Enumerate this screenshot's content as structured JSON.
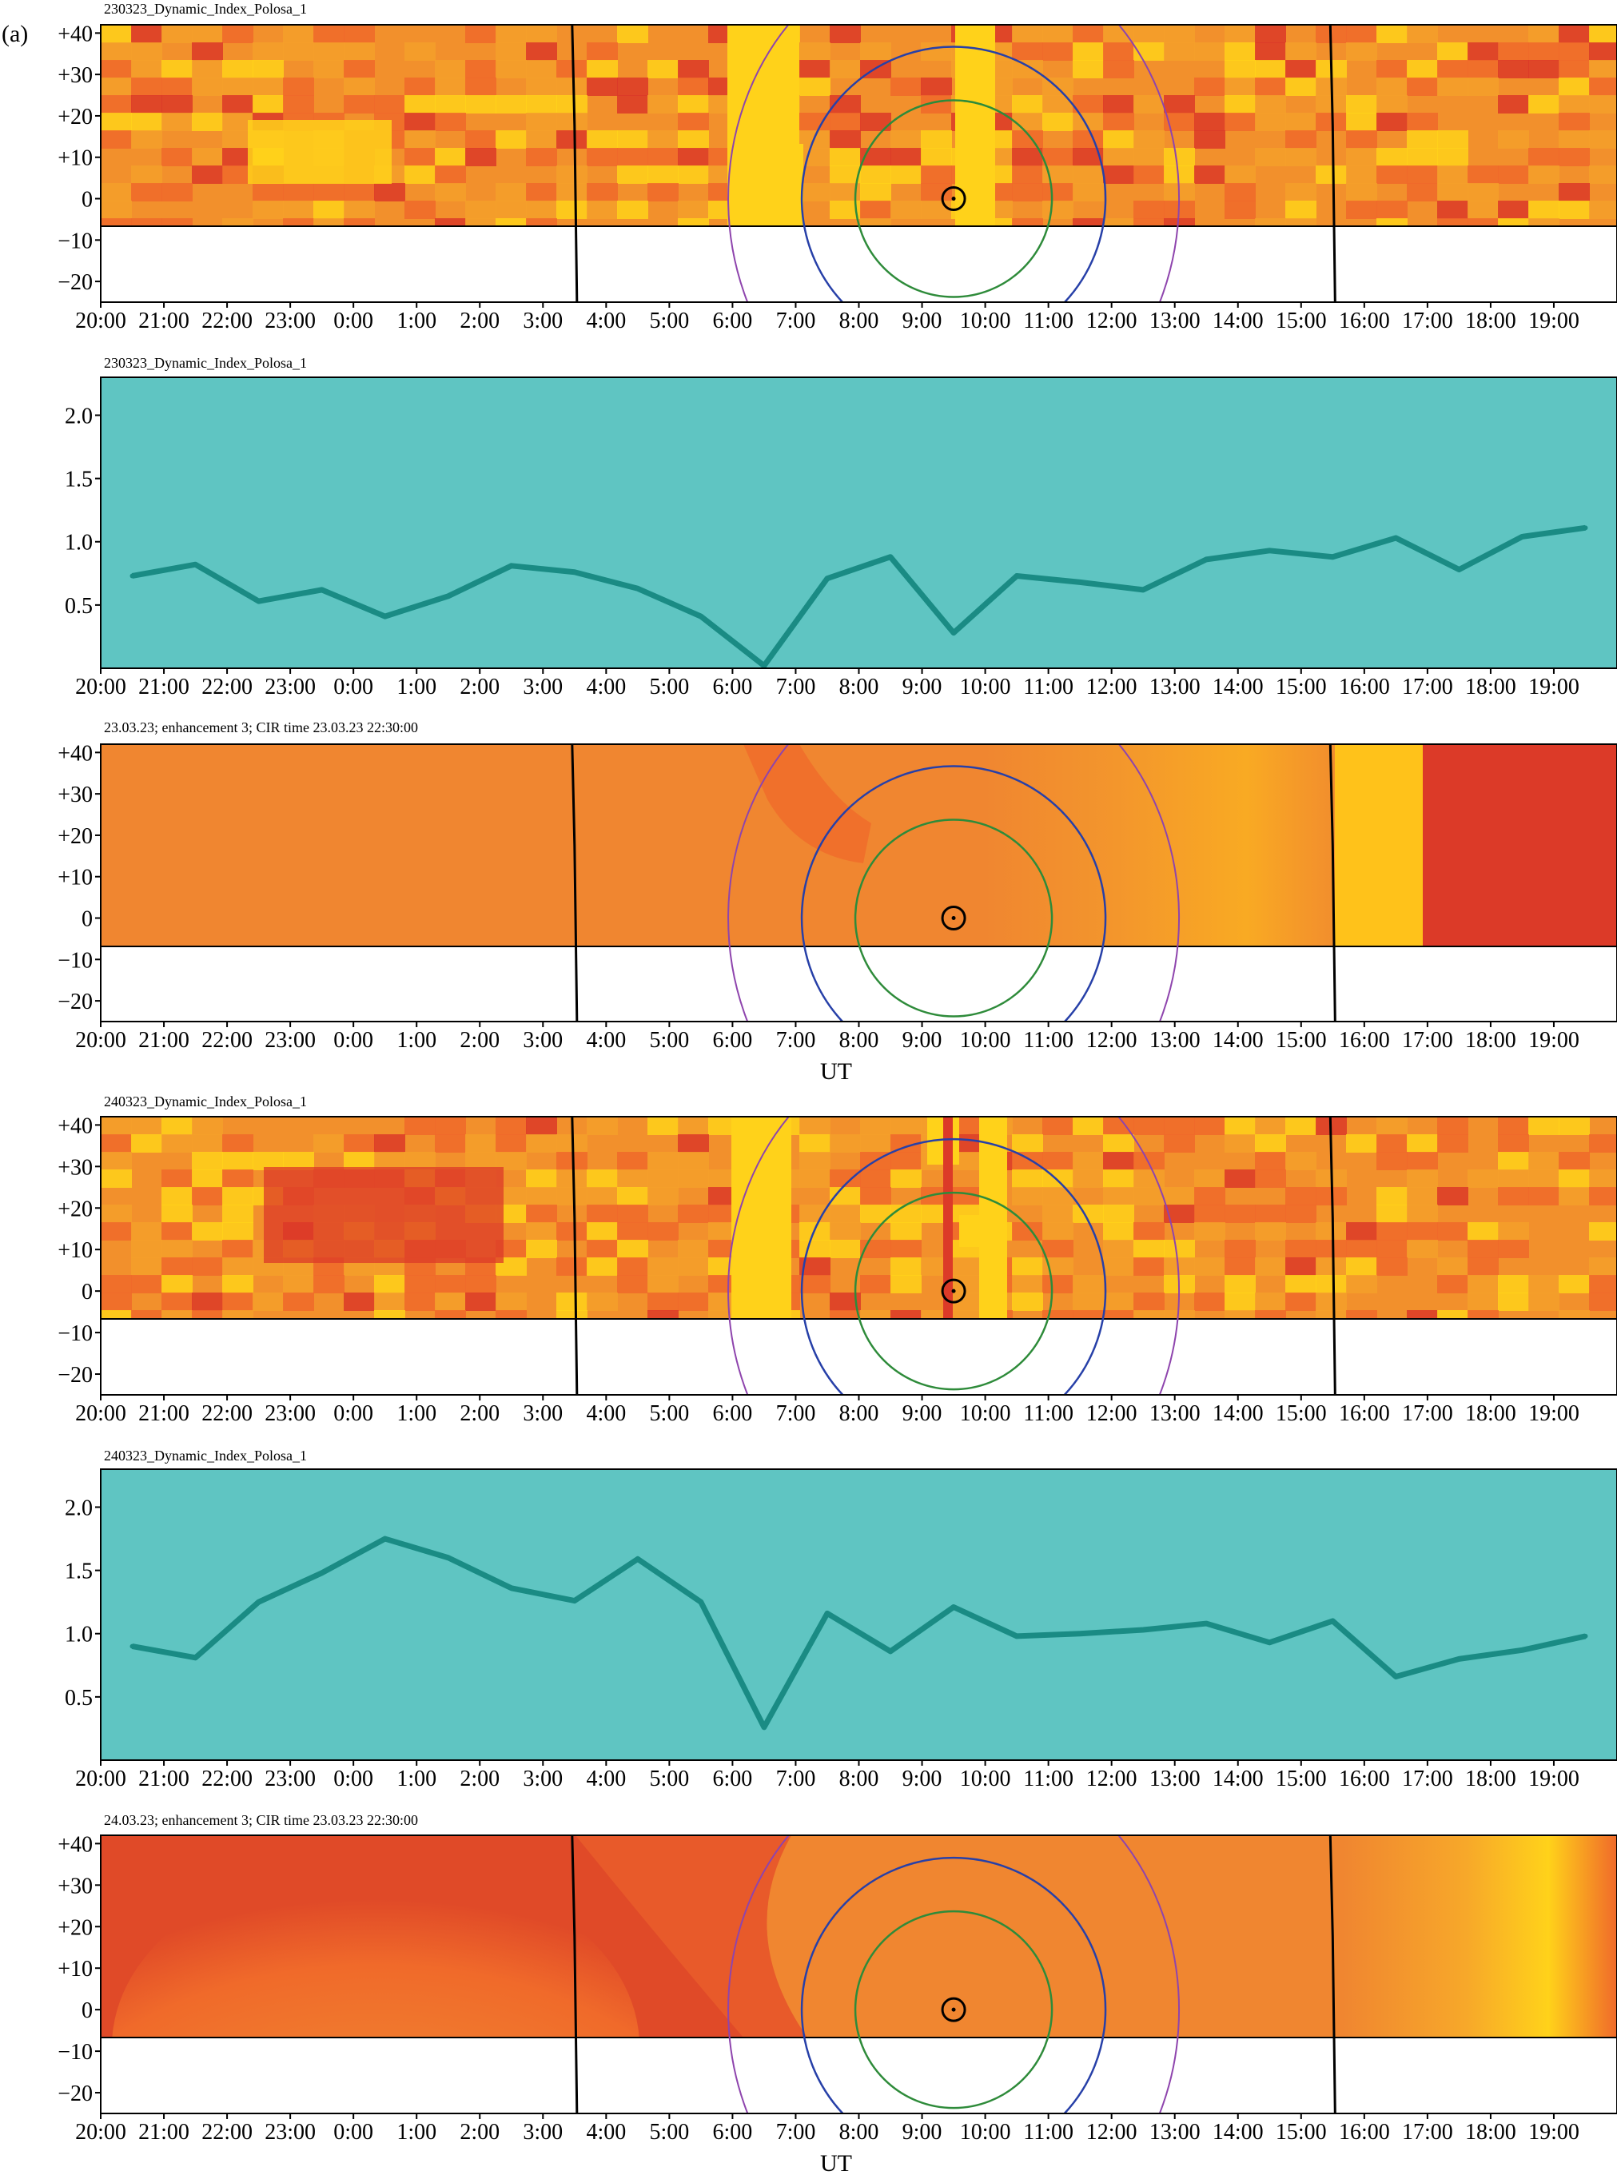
{
  "figure_label": "(a)",
  "colors": {
    "heat_pale": "#ffd21a",
    "heat_mid": "#f5a02a",
    "heat_orange": "#f08630",
    "heat_dark": "#f06a2a",
    "heat_red": "#dc3a28",
    "teal_bg": "#5fc5c2",
    "teal_line": "#1a8b84",
    "outer_arc": "#8e44ad",
    "middle_circle": "#2740a8",
    "inner_circle": "#2e8b3a",
    "marker": "#000000"
  },
  "x_ticks": [
    "20:00",
    "21:00",
    "22:00",
    "23:00",
    "0:00",
    "1:00",
    "2:00",
    "3:00",
    "4:00",
    "5:00",
    "6:00",
    "7:00",
    "8:00",
    "9:00",
    "10:00",
    "11:00",
    "12:00",
    "13:00",
    "14:00",
    "15:00",
    "16:00",
    "17:00",
    "18:00",
    "19:00"
  ],
  "chart_data": [
    {
      "type": "heatmap",
      "title": "230323_Dynamic_Index_Polosa_1",
      "xlabel": "",
      "y_ticks": [
        "+40",
        "+30",
        "+20",
        "+10",
        "0",
        "−10",
        "−20"
      ],
      "ylim": [
        -25,
        42
      ],
      "overlay": {
        "vertical_lines_ut": [
          "3:30",
          "15:30"
        ],
        "marker_ut": "9:30",
        "marker_lat": 0,
        "circles": [
          "inner",
          "middle",
          "outer"
        ]
      }
    },
    {
      "type": "line",
      "title": "230323_Dynamic_Index_Polosa_1",
      "xlabel": "",
      "y_ticks": [
        "2.0",
        "1.5",
        "1.0",
        "0.5"
      ],
      "ylim": [
        0,
        2.3
      ],
      "x": [
        "20:30",
        "21:30",
        "22:30",
        "23:30",
        "0:30",
        "1:30",
        "2:30",
        "3:30",
        "4:30",
        "5:30",
        "6:30",
        "7:30",
        "8:30",
        "9:30",
        "10:30",
        "11:30",
        "12:30",
        "13:30",
        "14:30",
        "15:30",
        "16:30",
        "17:30",
        "18:30",
        "19:30"
      ],
      "values": [
        0.73,
        0.82,
        0.53,
        0.62,
        0.41,
        0.57,
        0.81,
        0.76,
        0.63,
        0.41,
        0.02,
        0.71,
        0.88,
        0.28,
        0.73,
        0.68,
        0.62,
        0.86,
        0.93,
        0.88,
        1.03,
        0.78,
        1.04,
        1.11
      ]
    },
    {
      "type": "heatmap",
      "title": "23.03.23; enhancement 3; CIR time 23.03.23 22:30:00",
      "xlabel": "UT",
      "y_ticks": [
        "+40",
        "+30",
        "+20",
        "+10",
        "0",
        "−10",
        "−20"
      ],
      "ylim": [
        -25,
        42
      ],
      "overlay": {
        "vertical_lines_ut": [
          "3:30",
          "15:30"
        ],
        "marker_ut": "9:30",
        "marker_lat": 0,
        "circles": [
          "inner",
          "middle",
          "outer"
        ]
      }
    },
    {
      "type": "heatmap",
      "title": "240323_Dynamic_Index_Polosa_1",
      "xlabel": "",
      "y_ticks": [
        "+40",
        "+30",
        "+20",
        "+10",
        "0",
        "−10",
        "−20"
      ],
      "ylim": [
        -25,
        42
      ],
      "overlay": {
        "vertical_lines_ut": [
          "3:30",
          "15:30"
        ],
        "marker_ut": "9:30",
        "marker_lat": 0,
        "circles": [
          "inner",
          "middle",
          "outer"
        ]
      }
    },
    {
      "type": "line",
      "title": "240323_Dynamic_Index_Polosa_1",
      "xlabel": "",
      "y_ticks": [
        "2.0",
        "1.5",
        "1.0",
        "0.5"
      ],
      "ylim": [
        0,
        2.3
      ],
      "x": [
        "20:30",
        "21:30",
        "22:30",
        "23:30",
        "0:30",
        "1:30",
        "2:30",
        "3:30",
        "4:30",
        "5:30",
        "6:30",
        "7:30",
        "8:30",
        "9:30",
        "10:30",
        "11:30",
        "12:30",
        "13:30",
        "14:30",
        "15:30",
        "16:30",
        "17:30",
        "18:30",
        "19:30"
      ],
      "values": [
        0.9,
        0.81,
        1.25,
        1.48,
        1.75,
        1.6,
        1.36,
        1.26,
        1.59,
        1.25,
        0.26,
        1.16,
        0.86,
        1.21,
        0.98,
        1.0,
        1.03,
        1.08,
        0.93,
        1.1,
        0.66,
        0.8,
        0.87,
        0.98
      ]
    },
    {
      "type": "heatmap",
      "title": "24.03.23; enhancement 3; CIR time 23.03.23 22:30:00",
      "xlabel": "UT",
      "y_ticks": [
        "+40",
        "+30",
        "+20",
        "+10",
        "0",
        "−10",
        "−20"
      ],
      "ylim": [
        -25,
        42
      ],
      "overlay": {
        "vertical_lines_ut": [
          "3:30",
          "15:30"
        ],
        "marker_ut": "9:30",
        "marker_lat": 0,
        "circles": [
          "inner",
          "middle",
          "outer"
        ]
      }
    }
  ]
}
